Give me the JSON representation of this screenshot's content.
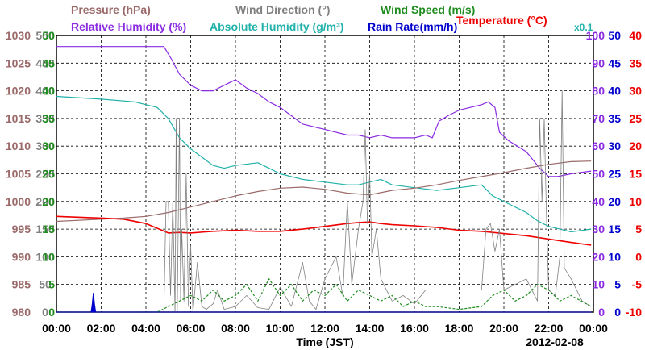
{
  "chart_data": {
    "type": "line",
    "date": "2012-02-08",
    "xlabel": "Time (JST)",
    "x_ticks": [
      "00:00",
      "02:00",
      "04:00",
      "06:00",
      "08:00",
      "10:00",
      "12:00",
      "14:00",
      "16:00",
      "18:00",
      "20:00",
      "22:00",
      "00:00"
    ],
    "x_range_hours": [
      0,
      24
    ],
    "grid": true,
    "legend": {
      "row1": [
        {
          "key": "pressure",
          "text": "Pressure (hPa)"
        },
        {
          "key": "wind_dir",
          "text": "Wind Direction (°)"
        },
        {
          "key": "wind_speed",
          "text": "Wind Speed (m/s)"
        }
      ],
      "row2": [
        {
          "key": "rh",
          "text": "Relative Humidity (%)"
        },
        {
          "key": "ah",
          "text": "Absolute Humidity (g/m³)"
        },
        {
          "key": "ah_scale",
          "text": "x0.1"
        },
        {
          "key": "rain",
          "text": "Rain Rate(mm/h)"
        },
        {
          "key": "temp",
          "text": "Temperature (°C)"
        }
      ]
    },
    "axes": {
      "pressure": {
        "min": 980,
        "max": 1030,
        "ticks": [
          "980",
          "985",
          "990",
          "995",
          "1000",
          "1005",
          "1010",
          "1015",
          "1020",
          "1025",
          "1030"
        ]
      },
      "wind_dir": {
        "min": 0,
        "max": 500,
        "ticks": [
          "0",
          "50",
          "100",
          "150",
          "200",
          "250",
          "300",
          "350",
          "400",
          "450",
          "500"
        ]
      },
      "wind_speed": {
        "min": 0,
        "max": 50,
        "ticks": [
          "0",
          "5",
          "10",
          "15",
          "20",
          "25",
          "30",
          "35",
          "40",
          "45",
          "50"
        ]
      },
      "rh": {
        "min": 0,
        "max": 100,
        "ticks": [
          "0",
          "10",
          "20",
          "30",
          "40",
          "50",
          "60",
          "70",
          "80",
          "90",
          "100"
        ]
      },
      "rain": {
        "min": 0,
        "max": 50,
        "ticks": [
          "0",
          "5",
          "10",
          "15",
          "20",
          "25",
          "30",
          "35",
          "40",
          "45",
          "50"
        ]
      },
      "temp": {
        "min": -10,
        "max": 40,
        "ticks": [
          "-10",
          "-5",
          "0",
          "5",
          "10",
          "15",
          "20",
          "25",
          "30",
          "35",
          "40"
        ]
      }
    },
    "colors": {
      "pressure": "#9b6a6a",
      "wind_dir": "#808080",
      "wind_speed": "#1e8c1e",
      "rh": "#8a2be2",
      "ah": "#20b2aa",
      "rain": "#0000cd",
      "temp": "#ee0000",
      "ah_scale": "#20b2aa"
    },
    "series": [
      {
        "key": "rh",
        "name": "Relative Humidity (%)",
        "axis": "rh",
        "points": [
          [
            0,
            96
          ],
          [
            4.8,
            96
          ],
          [
            5.1,
            92
          ],
          [
            5.5,
            86
          ],
          [
            6,
            82
          ],
          [
            6.5,
            80
          ],
          [
            7,
            80
          ],
          [
            7.5,
            82
          ],
          [
            8,
            84
          ],
          [
            8.5,
            81
          ],
          [
            9,
            79
          ],
          [
            9.5,
            76
          ],
          [
            10,
            74
          ],
          [
            10.5,
            71
          ],
          [
            11,
            68
          ],
          [
            12,
            66
          ],
          [
            13,
            64
          ],
          [
            13.5,
            64
          ],
          [
            14,
            63
          ],
          [
            14.5,
            64
          ],
          [
            15,
            63
          ],
          [
            16,
            63
          ],
          [
            16.5,
            64
          ],
          [
            16.8,
            63
          ],
          [
            17.1,
            69
          ],
          [
            17.5,
            71
          ],
          [
            18,
            73
          ],
          [
            18.5,
            74
          ],
          [
            19,
            75
          ],
          [
            19.3,
            76
          ],
          [
            19.6,
            74
          ],
          [
            19.8,
            65
          ],
          [
            20.2,
            62
          ],
          [
            20.6,
            60
          ],
          [
            21,
            58
          ],
          [
            21.3,
            55
          ],
          [
            21.6,
            52
          ],
          [
            22,
            49
          ],
          [
            22.4,
            49
          ],
          [
            23,
            50
          ],
          [
            23.9,
            51
          ]
        ]
      },
      {
        "key": "ah",
        "name": "Absolute Humidity (g/m³)",
        "axis": "rh",
        "points": [
          [
            0,
            78
          ],
          [
            2,
            77
          ],
          [
            3.5,
            76
          ],
          [
            4.5,
            74
          ],
          [
            5,
            70
          ],
          [
            5.5,
            63
          ],
          [
            6,
            59
          ],
          [
            6.5,
            56
          ],
          [
            7,
            53
          ],
          [
            7.5,
            52
          ],
          [
            8,
            53
          ],
          [
            9,
            54
          ],
          [
            9.5,
            52
          ],
          [
            10,
            50
          ],
          [
            11,
            48
          ],
          [
            12,
            47
          ],
          [
            13,
            46
          ],
          [
            13.5,
            46
          ],
          [
            14,
            47
          ],
          [
            14.5,
            48
          ],
          [
            15,
            46
          ],
          [
            16,
            45
          ],
          [
            17,
            44
          ],
          [
            18,
            45
          ],
          [
            19,
            46
          ],
          [
            19.5,
            42
          ],
          [
            20,
            40
          ],
          [
            20.5,
            38
          ],
          [
            21,
            36
          ],
          [
            21.5,
            33
          ],
          [
            22,
            31
          ],
          [
            22.5,
            30
          ],
          [
            23,
            29
          ],
          [
            23.9,
            30
          ]
        ]
      },
      {
        "key": "pressure",
        "name": "Pressure (hPa)",
        "axis": "pressure",
        "points": [
          [
            0,
            996.4
          ],
          [
            2,
            996.8
          ],
          [
            3,
            997.0
          ],
          [
            4,
            997.3
          ],
          [
            5,
            998.0
          ],
          [
            6,
            999.0
          ],
          [
            7,
            1000.0
          ],
          [
            8,
            1001.0
          ],
          [
            9,
            1001.8
          ],
          [
            10,
            1002.4
          ],
          [
            11,
            1002.6
          ],
          [
            12,
            1002.2
          ],
          [
            13,
            1001.5
          ],
          [
            14,
            1001.2
          ],
          [
            15,
            1002.0
          ],
          [
            16,
            1002.4
          ],
          [
            17,
            1003.0
          ],
          [
            18,
            1003.8
          ],
          [
            19,
            1004.5
          ],
          [
            20,
            1005.2
          ],
          [
            21,
            1006.0
          ],
          [
            22,
            1006.7
          ],
          [
            23,
            1007.2
          ],
          [
            23.9,
            1007.3
          ]
        ]
      },
      {
        "key": "temp",
        "name": "Temperature (°C)",
        "axis": "temp",
        "points": [
          [
            0,
            7.3
          ],
          [
            2,
            7.0
          ],
          [
            3,
            6.8
          ],
          [
            4,
            6.0
          ],
          [
            4.6,
            5.0
          ],
          [
            5,
            4.3
          ],
          [
            5.5,
            4.4
          ],
          [
            6,
            4.3
          ],
          [
            7,
            4.6
          ],
          [
            8,
            4.8
          ],
          [
            9,
            4.6
          ],
          [
            10,
            4.6
          ],
          [
            11,
            5.0
          ],
          [
            12,
            5.5
          ],
          [
            13,
            6.0
          ],
          [
            13.5,
            6.2
          ],
          [
            14,
            6.3
          ],
          [
            14.5,
            6.0
          ],
          [
            15,
            5.8
          ],
          [
            16,
            5.6
          ],
          [
            17,
            5.3
          ],
          [
            18,
            4.8
          ],
          [
            19,
            4.6
          ],
          [
            20,
            4.2
          ],
          [
            21,
            3.8
          ],
          [
            22,
            3.2
          ],
          [
            23,
            2.6
          ],
          [
            23.9,
            2.1
          ]
        ]
      },
      {
        "key": "wind_dir",
        "name": "Wind Direction (°)",
        "axis": "wind_dir",
        "points": [
          [
            0,
            0
          ],
          [
            4.8,
            0
          ],
          [
            4.9,
            200
          ],
          [
            5.0,
            200
          ],
          [
            5.1,
            30
          ],
          [
            5.2,
            200
          ],
          [
            5.3,
            0
          ],
          [
            5.35,
            350
          ],
          [
            5.4,
            0
          ],
          [
            5.5,
            350
          ],
          [
            5.55,
            20
          ],
          [
            5.6,
            150
          ],
          [
            5.7,
            20
          ],
          [
            5.8,
            250
          ],
          [
            5.9,
            10
          ],
          [
            6.0,
            120
          ],
          [
            6.1,
            0
          ],
          [
            6.3,
            90
          ],
          [
            6.5,
            10
          ],
          [
            6.7,
            5
          ],
          [
            7,
            15
          ],
          [
            7.2,
            40
          ],
          [
            7.5,
            5
          ],
          [
            8,
            10
          ],
          [
            8.5,
            30
          ],
          [
            9,
            8
          ],
          [
            9.5,
            5
          ],
          [
            10,
            45
          ],
          [
            10.5,
            10
          ],
          [
            11,
            90
          ],
          [
            11.3,
            20
          ],
          [
            11.6,
            5
          ],
          [
            12,
            60
          ],
          [
            12.5,
            100
          ],
          [
            12.8,
            30
          ],
          [
            13,
            200
          ],
          [
            13.2,
            50
          ],
          [
            13.5,
            150
          ],
          [
            13.7,
            200
          ],
          [
            13.8,
            330
          ],
          [
            13.9,
            160
          ],
          [
            14.0,
            250
          ],
          [
            14.1,
            100
          ],
          [
            14.3,
            150
          ],
          [
            14.5,
            60
          ],
          [
            15,
            20
          ],
          [
            15.5,
            30
          ],
          [
            16,
            15
          ],
          [
            16.5,
            40
          ],
          [
            16.6,
            40
          ],
          [
            17,
            40
          ],
          [
            19,
            40
          ],
          [
            19.2,
            150
          ],
          [
            19.4,
            160
          ],
          [
            19.6,
            110
          ],
          [
            19.8,
            150
          ],
          [
            20,
            40
          ],
          [
            20.5,
            50
          ],
          [
            21,
            60
          ],
          [
            21.5,
            20
          ],
          [
            21.6,
            350
          ],
          [
            21.7,
            200
          ],
          [
            21.8,
            350
          ],
          [
            21.9,
            180
          ],
          [
            22,
            40
          ],
          [
            22.3,
            30
          ],
          [
            22.5,
            100
          ],
          [
            22.6,
            400
          ],
          [
            22.7,
            80
          ],
          [
            23,
            60
          ],
          [
            23.5,
            20
          ],
          [
            23.9,
            10
          ]
        ]
      },
      {
        "key": "wind_speed",
        "name": "Wind Speed (m/s)",
        "axis": "wind_speed",
        "points": [
          [
            0,
            0
          ],
          [
            4.5,
            0
          ],
          [
            5,
            1
          ],
          [
            5.5,
            2
          ],
          [
            6,
            3
          ],
          [
            6.5,
            2
          ],
          [
            7,
            4
          ],
          [
            7.5,
            2
          ],
          [
            8,
            3
          ],
          [
            8.5,
            5
          ],
          [
            9,
            2
          ],
          [
            9.5,
            6
          ],
          [
            10,
            3
          ],
          [
            10.5,
            5
          ],
          [
            11,
            2
          ],
          [
            11.5,
            4
          ],
          [
            12,
            3
          ],
          [
            12.5,
            5
          ],
          [
            13,
            2
          ],
          [
            13.5,
            4
          ],
          [
            14,
            3
          ],
          [
            14.5,
            2
          ],
          [
            15,
            3
          ],
          [
            15.5,
            1
          ],
          [
            16,
            2
          ],
          [
            16.5,
            1
          ],
          [
            17,
            1
          ],
          [
            18,
            0.5
          ],
          [
            19,
            1
          ],
          [
            19.5,
            3
          ],
          [
            20,
            4
          ],
          [
            20.5,
            2
          ],
          [
            21,
            3
          ],
          [
            21.5,
            5
          ],
          [
            22,
            4
          ],
          [
            22.5,
            2
          ],
          [
            23,
            3
          ],
          [
            23.9,
            1
          ]
        ]
      },
      {
        "key": "rain",
        "name": "Rain Rate(mm/h)",
        "axis": "rain",
        "points": [
          [
            0,
            0
          ],
          [
            1.55,
            0
          ],
          [
            1.6,
            1.5
          ],
          [
            1.65,
            3.5
          ],
          [
            1.7,
            1.5
          ],
          [
            1.75,
            0
          ],
          [
            23.9,
            0
          ]
        ]
      }
    ]
  }
}
